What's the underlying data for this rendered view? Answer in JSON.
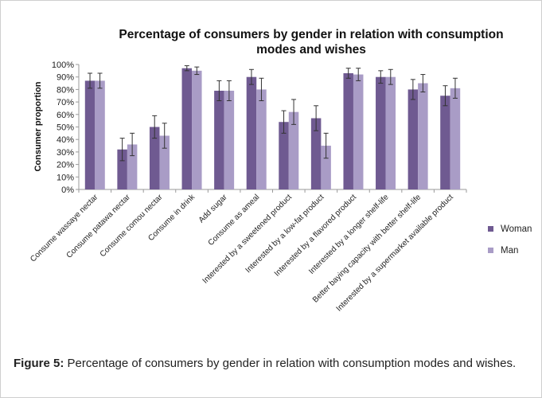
{
  "chart_data": {
    "type": "bar",
    "title_line1": "Percentage of consumers by gender in relation with consumption",
    "title_line2": "modes and wishes",
    "ylabel": "Consumer proportion",
    "xlabel": "",
    "ylim": [
      0,
      100
    ],
    "yticks": [
      "0%",
      "10%",
      "20%",
      "30%",
      "40%",
      "50%",
      "60%",
      "70%",
      "80%",
      "90%",
      "100%"
    ],
    "grid": false,
    "legend_position": "right",
    "categories": [
      "Consume wassaye nectar",
      "Consume patawa nectar",
      "Consume comou nectar",
      "Consume in drink",
      "Add sugar",
      "Consume as ameal",
      "Interested by a sweetened product",
      "Interested by a low-fat product",
      "Interested by a flavored product",
      "Interested by a longer shelf-life",
      "Better baying capacity with better shelf-life",
      "Interested by a supermarket available product"
    ],
    "series": [
      {
        "name": "Woman",
        "color": "#6f5a91",
        "values": [
          87,
          32,
          50,
          97,
          79,
          90,
          54,
          57,
          93,
          90,
          80,
          75
        ],
        "error": [
          6,
          9,
          9,
          2,
          8,
          6,
          9,
          10,
          4,
          5,
          8,
          8
        ]
      },
      {
        "name": "Man",
        "color": "#a99cc6",
        "values": [
          87,
          36,
          43,
          95,
          79,
          80,
          62,
          35,
          92,
          90,
          85,
          81
        ],
        "error": [
          6,
          9,
          10,
          3,
          8,
          9,
          10,
          10,
          5,
          6,
          7,
          8
        ]
      }
    ]
  },
  "caption": {
    "label": "Figure 5:",
    "text": " Percentage of consumers by gender in relation with consumption modes and wishes."
  }
}
